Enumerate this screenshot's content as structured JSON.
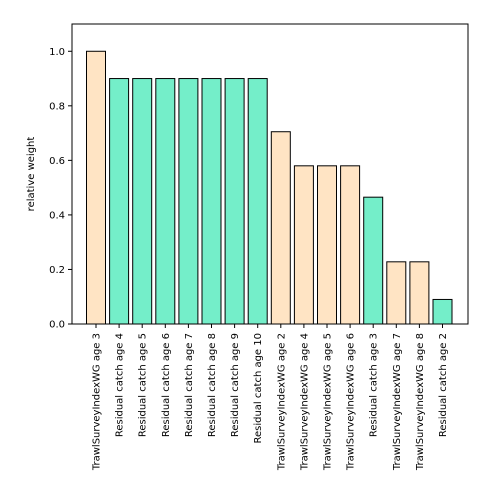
{
  "chart_data": {
    "type": "bar",
    "title": "",
    "xlabel": "",
    "ylabel": "relative weight",
    "ylim": [
      0,
      1.1
    ],
    "yticks": [
      "0.0",
      "0.2",
      "0.4",
      "0.6",
      "0.8",
      "1.0"
    ],
    "grid": false,
    "categories": [
      "TrawlSurveyIndexWG age 3",
      "Residual catch age 4",
      "Residual catch age 5",
      "Residual catch age 6",
      "Residual catch age 7",
      "Residual catch age 8",
      "Residual catch age 9",
      "Residual catch age 10",
      "TrawlSurveyIndexWG age 2",
      "TrawlSurveyIndexWG age 4",
      "TrawlSurveyIndexWG age 5",
      "TrawlSurveyIndexWG age 6",
      "Residual catch age 3",
      "TrawlSurveyIndexWG age 7",
      "TrawlSurveyIndexWG age 8",
      "Residual catch age 2"
    ],
    "values": [
      1.0,
      0.9,
      0.9,
      0.9,
      0.9,
      0.9,
      0.9,
      0.9,
      0.705,
      0.58,
      0.58,
      0.58,
      0.465,
      0.228,
      0.228,
      0.09
    ],
    "bar_colors": [
      "#ffe4c4",
      "#74eec9",
      "#74eec9",
      "#74eec9",
      "#74eec9",
      "#74eec9",
      "#74eec9",
      "#74eec9",
      "#ffe4c4",
      "#ffe4c4",
      "#ffe4c4",
      "#ffe4c4",
      "#74eec9",
      "#ffe4c4",
      "#ffe4c4",
      "#74eec9"
    ],
    "colors": {
      "survey": "#ffe4c4",
      "catch": "#74eec9",
      "edge": "#000000"
    }
  }
}
